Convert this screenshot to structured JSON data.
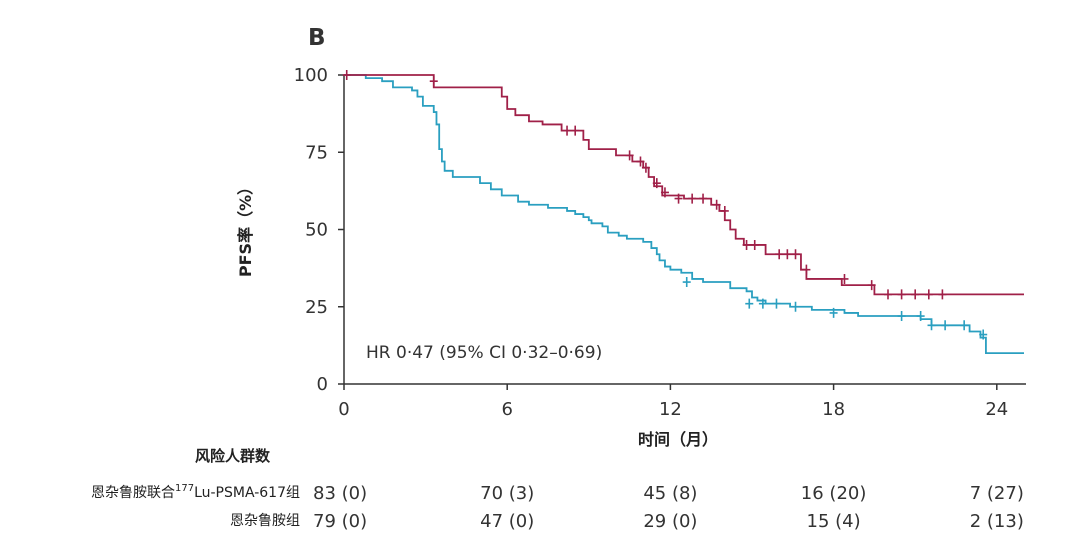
{
  "chart_data": {
    "type": "line",
    "panel_label": "B",
    "ylabel": "PFS率（%）",
    "xlabel": "时间（月）",
    "xlim": [
      0,
      25
    ],
    "ylim": [
      0,
      100
    ],
    "xticks": [
      "0",
      "6",
      "12",
      "18",
      "24"
    ],
    "yticks": [
      "0",
      "25",
      "50",
      "75",
      "100"
    ],
    "annotation": "HR 0·47 (95% CI 0·32–0·69)",
    "colors": {
      "combo": "#a02048",
      "mono": "#2a9fc0",
      "axis": "#333333"
    },
    "series": [
      {
        "key": "combo",
        "steps": [
          [
            0,
            100
          ],
          [
            3.3,
            96
          ],
          [
            5.8,
            93
          ],
          [
            6.0,
            89
          ],
          [
            6.3,
            87
          ],
          [
            6.8,
            85
          ],
          [
            7.3,
            84
          ],
          [
            8.0,
            82
          ],
          [
            8.8,
            79
          ],
          [
            9.0,
            76
          ],
          [
            10.0,
            74
          ],
          [
            10.6,
            72
          ],
          [
            11.0,
            70
          ],
          [
            11.2,
            67
          ],
          [
            11.4,
            64
          ],
          [
            11.7,
            61
          ],
          [
            12.5,
            60
          ],
          [
            13.5,
            58
          ],
          [
            13.8,
            56
          ],
          [
            14.0,
            53
          ],
          [
            14.2,
            50
          ],
          [
            14.4,
            47
          ],
          [
            14.7,
            45
          ],
          [
            15.5,
            42
          ],
          [
            16.8,
            37
          ],
          [
            17.0,
            34
          ],
          [
            18.3,
            32
          ],
          [
            19.5,
            29
          ],
          [
            25,
            29
          ]
        ],
        "censors": [
          [
            0.1,
            100
          ],
          [
            3.3,
            98
          ],
          [
            8.2,
            82
          ],
          [
            8.5,
            82
          ],
          [
            10.5,
            74
          ],
          [
            10.9,
            72
          ],
          [
            11.1,
            70
          ],
          [
            11.5,
            65
          ],
          [
            11.8,
            62
          ],
          [
            12.3,
            60
          ],
          [
            12.8,
            60
          ],
          [
            13.2,
            60
          ],
          [
            13.7,
            58
          ],
          [
            14.0,
            56
          ],
          [
            14.8,
            45
          ],
          [
            15.1,
            45
          ],
          [
            16.0,
            42
          ],
          [
            16.3,
            42
          ],
          [
            16.6,
            42
          ],
          [
            17.0,
            37
          ],
          [
            18.4,
            34
          ],
          [
            19.4,
            32
          ],
          [
            20.0,
            29
          ],
          [
            20.5,
            29
          ],
          [
            21.0,
            29
          ],
          [
            21.5,
            29
          ],
          [
            22.0,
            29
          ]
        ]
      },
      {
        "key": "mono",
        "steps": [
          [
            0,
            100
          ],
          [
            0.8,
            99
          ],
          [
            1.4,
            98
          ],
          [
            1.8,
            96
          ],
          [
            2.5,
            95
          ],
          [
            2.7,
            93
          ],
          [
            2.9,
            90
          ],
          [
            3.3,
            88
          ],
          [
            3.4,
            84
          ],
          [
            3.5,
            80
          ],
          [
            3.5,
            76
          ],
          [
            3.6,
            72
          ],
          [
            3.7,
            69
          ],
          [
            4.0,
            67
          ],
          [
            5.0,
            65
          ],
          [
            5.4,
            63
          ],
          [
            5.8,
            61
          ],
          [
            6.4,
            59
          ],
          [
            6.8,
            58
          ],
          [
            7.5,
            57
          ],
          [
            8.2,
            56
          ],
          [
            8.5,
            55
          ],
          [
            8.8,
            54
          ],
          [
            9.0,
            53
          ],
          [
            9.1,
            52
          ],
          [
            9.5,
            51
          ],
          [
            9.7,
            49
          ],
          [
            10.1,
            48
          ],
          [
            10.4,
            47
          ],
          [
            11.0,
            46
          ],
          [
            11.3,
            44
          ],
          [
            11.5,
            42
          ],
          [
            11.6,
            40
          ],
          [
            11.8,
            38
          ],
          [
            12.0,
            37
          ],
          [
            12.4,
            36
          ],
          [
            12.8,
            34
          ],
          [
            13.2,
            33
          ],
          [
            14.2,
            31
          ],
          [
            14.8,
            30
          ],
          [
            15.0,
            28
          ],
          [
            15.2,
            27
          ],
          [
            15.5,
            26
          ],
          [
            16.4,
            25
          ],
          [
            17.2,
            24
          ],
          [
            18.4,
            23
          ],
          [
            18.9,
            22
          ],
          [
            21.2,
            21
          ],
          [
            21.6,
            19
          ],
          [
            23.0,
            17
          ],
          [
            23.4,
            15
          ],
          [
            23.6,
            10
          ],
          [
            25,
            10
          ]
        ]
      }
    ],
    "mono_censors": [
      [
        12.6,
        33
      ],
      [
        14.9,
        26
      ],
      [
        15.4,
        26
      ],
      [
        15.9,
        26
      ],
      [
        16.6,
        25
      ],
      [
        18.0,
        23
      ],
      [
        20.5,
        22
      ],
      [
        21.2,
        22
      ],
      [
        21.6,
        19
      ],
      [
        22.1,
        19
      ],
      [
        22.8,
        19
      ],
      [
        23.5,
        16
      ]
    ],
    "risk_table": {
      "title": "风险人群数",
      "times": [
        0,
        6,
        12,
        18,
        24
      ],
      "rows": [
        {
          "label_prefix": "恩杂鲁胺联合",
          "label_sup": "177",
          "label_suffix": "Lu-PSMA-617组",
          "values": [
            "83 (0)",
            "70 (3)",
            "45 (8)",
            "16 (20)",
            "7 (27)"
          ]
        },
        {
          "label": "恩杂鲁胺组",
          "values": [
            "79 (0)",
            "47 (0)",
            "29 (0)",
            "15 (4)",
            "2 (13)"
          ]
        }
      ]
    }
  }
}
